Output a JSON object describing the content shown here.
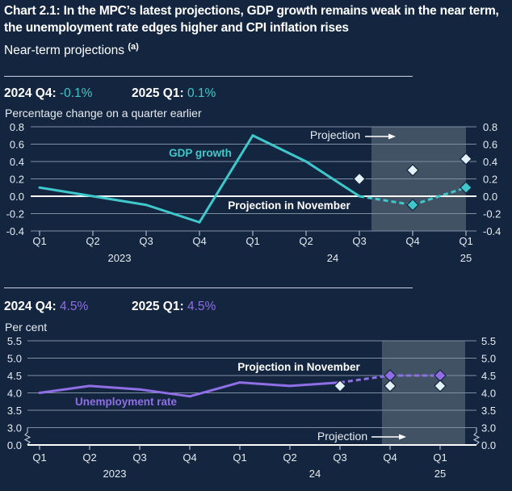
{
  "header": {
    "title": "Chart 2.1: In the MPC’s latest projections, GDP growth remains weak in the near term, the unemployment rate edges higher and CPI inflation rises",
    "subtitle": "Near-term projections",
    "footnote_marker": "(a)"
  },
  "colors": {
    "background": "#14263f",
    "gdp": "#3fc8cc",
    "unemployment": "#8f6ee6",
    "november_marker": "#e4f2f5",
    "projection_shade": "#4a5a6c",
    "gridline": "#7f8fa2"
  },
  "chart_data": [
    {
      "type": "line",
      "title": "GDP growth",
      "stats": [
        {
          "label": "2024 Q4:",
          "value": "-0.1%"
        },
        {
          "label": "2025 Q1:",
          "value": "0.1%"
        }
      ],
      "ylabel": "Percentage change on a quarter earlier",
      "ylim": [
        -0.4,
        0.8
      ],
      "yticks": [
        "0.8",
        "0.6",
        "0.4",
        "0.2",
        "0.0",
        "-0.2",
        "-0.4"
      ],
      "ytick_values": [
        0.8,
        0.6,
        0.4,
        0.2,
        0.0,
        -0.2,
        -0.4
      ],
      "categories": [
        "Q1",
        "Q2",
        "Q3",
        "Q4",
        "Q1",
        "Q2",
        "Q3",
        "Q4",
        "Q1"
      ],
      "year_labels": [
        {
          "label": "2023",
          "index": 1.5
        },
        {
          "label": "24",
          "index": 5.5
        },
        {
          "label": "25",
          "index": 8
        }
      ],
      "series": [
        {
          "name": "GDP growth",
          "style": "solid",
          "x": [
            0,
            1,
            2,
            3,
            4,
            5,
            6
          ],
          "values": [
            0.1,
            0.0,
            -0.1,
            -0.3,
            0.7,
            0.4,
            0.0
          ]
        },
        {
          "name": "GDP growth projection",
          "style": "dashed",
          "x": [
            6,
            7,
            8
          ],
          "values": [
            0.0,
            -0.1,
            0.1
          ],
          "markers_at": [
            7,
            8
          ]
        },
        {
          "name": "Projection in November",
          "style": "markers",
          "x": [
            6,
            7,
            8
          ],
          "values": [
            0.2,
            0.3,
            0.43
          ]
        }
      ],
      "projection_start_index": 6.3,
      "projection_end_index": 8,
      "annotations": {
        "series_label": "GDP growth",
        "november_label": "Projection in November",
        "projection_label": "Projection"
      },
      "grid": true
    },
    {
      "type": "line",
      "title": "Unemployment rate",
      "stats": [
        {
          "label": "2024 Q4:",
          "value": "4.5%"
        },
        {
          "label": "2025 Q1:",
          "value": "4.5%"
        }
      ],
      "ylabel": "Per cent",
      "ylim": [
        0.0,
        5.5
      ],
      "axis_break": "between 0.0 and 3.0",
      "yticks": [
        "5.5",
        "5.0",
        "4.5",
        "4.0",
        "3.5",
        "3.0",
        "0.0"
      ],
      "ytick_values": [
        5.5,
        5.0,
        4.5,
        4.0,
        3.5,
        3.0,
        0.0
      ],
      "categories": [
        "Q1",
        "Q2",
        "Q3",
        "Q4",
        "Q1",
        "Q2",
        "Q3",
        "Q4",
        "Q1"
      ],
      "year_labels": [
        {
          "label": "2023",
          "index": 1.5
        },
        {
          "label": "24",
          "index": 5.5
        },
        {
          "label": "25",
          "index": 8
        }
      ],
      "series": [
        {
          "name": "Unemployment rate",
          "style": "solid",
          "x": [
            0,
            1,
            2,
            3,
            4,
            5,
            6
          ],
          "values": [
            4.0,
            4.2,
            4.1,
            3.9,
            4.3,
            4.2,
            4.3
          ]
        },
        {
          "name": "Unemployment rate projection",
          "style": "dashed",
          "x": [
            6,
            7,
            8
          ],
          "values": [
            4.3,
            4.5,
            4.5
          ],
          "markers_at": [
            7,
            8
          ]
        },
        {
          "name": "Projection in November",
          "style": "markers",
          "x": [
            6,
            7,
            8
          ],
          "values": [
            4.2,
            4.2,
            4.2
          ]
        }
      ],
      "projection_start_index": 6.85,
      "projection_end_index": 8.5,
      "annotations": {
        "series_label": "Unemployment rate",
        "november_label": "Projection in November",
        "projection_label": "Projection"
      },
      "grid": true
    }
  ]
}
